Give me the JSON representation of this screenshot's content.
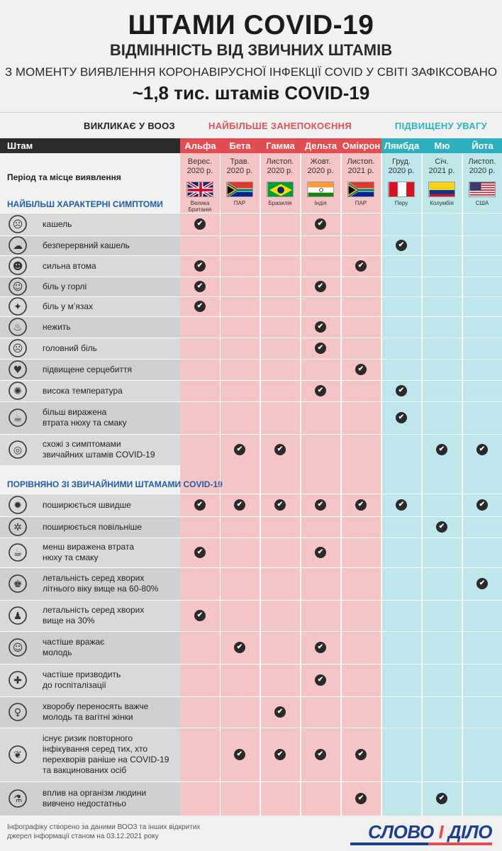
{
  "header": {
    "title": "ШТАМИ COVID-19",
    "subtitle": "ВІДМІННІСТЬ ВІД ЗВИЧНИХ ШТАМІВ",
    "line1": "З МОМЕНТУ ВИЯВЛЕННЯ КОРОНАВІРУСНОЇ ІНФЕКЦІЇ COVID У СВІТІ ЗАФІКСОВАНО",
    "line2": "~1,8 тис. штамів COVID-19"
  },
  "categories": {
    "who": "ВИКЛИКАЄ У ВООЗ",
    "concern": "НАЙБІЛЬШЕ ЗАНЕПОКОЄННЯ",
    "attention": "ПІДВИЩЕНУ УВАГУ"
  },
  "table": {
    "strain_label": "Штам",
    "period_label": "Період та місце виявлення",
    "variants": [
      {
        "name": "Альфа",
        "group": "concern",
        "date": [
          "Верес.",
          "2020 р."
        ],
        "country": [
          "Велика",
          "Британія"
        ],
        "flag": "uk-flag"
      },
      {
        "name": "Бета",
        "group": "concern",
        "date": [
          "Трав.",
          "2020 р."
        ],
        "country": [
          "ПАР"
        ],
        "flag": "south-africa-flag"
      },
      {
        "name": "Гамма",
        "group": "concern",
        "date": [
          "Листоп.",
          "2020 р."
        ],
        "country": [
          "Бразилія"
        ],
        "flag": "brazil-flag"
      },
      {
        "name": "Дельта",
        "group": "concern",
        "date": [
          "Жовт.",
          "2020 р."
        ],
        "country": [
          "Індія"
        ],
        "flag": "india-flag"
      },
      {
        "name": "Омікрон",
        "group": "concern",
        "date": [
          "Листоп.",
          "2021 р."
        ],
        "country": [
          "ПАР"
        ],
        "flag": "south-africa-flag"
      },
      {
        "name": "Лямбда",
        "group": "attention",
        "date": [
          "Груд.",
          "2020 р."
        ],
        "country": [
          "Перу"
        ],
        "flag": "peru-flag"
      },
      {
        "name": "Мю",
        "group": "attention",
        "date": [
          "Січ.",
          "2021 р."
        ],
        "country": [
          "Колумбія"
        ],
        "flag": "colombia-flag"
      },
      {
        "name": "Йота",
        "group": "attention",
        "date": [
          "Листоп.",
          "2020 р."
        ],
        "country": [
          "США"
        ],
        "flag": "usa-flag"
      }
    ]
  },
  "sections": [
    {
      "title": "НАЙБІЛЬШ ХАРАКТЕРНІ СИМПТОМИ",
      "rows": [
        {
          "label": [
            "кашель"
          ],
          "icon": "cough-icon",
          "checks": [
            0,
            3
          ]
        },
        {
          "label": [
            "безперервний кашель"
          ],
          "icon": "continuous-cough-icon",
          "checks": [
            5
          ]
        },
        {
          "label": [
            "сильна втома"
          ],
          "icon": "fatigue-icon",
          "checks": [
            0,
            4
          ]
        },
        {
          "label": [
            "біль у горлі"
          ],
          "icon": "sore-throat-icon",
          "checks": [
            0,
            3
          ]
        },
        {
          "label": [
            "біль у м’язах"
          ],
          "icon": "muscle-pain-icon",
          "checks": [
            0
          ]
        },
        {
          "label": [
            "нежить"
          ],
          "icon": "runny-nose-icon",
          "checks": [
            3
          ]
        },
        {
          "label": [
            "головний біль"
          ],
          "icon": "headache-icon",
          "checks": [
            3
          ]
        },
        {
          "label": [
            "підвищене серцебиття"
          ],
          "icon": "heartbeat-icon",
          "checks": [
            4
          ]
        },
        {
          "label": [
            "висока температура"
          ],
          "icon": "thermometer-icon",
          "checks": [
            3,
            5
          ]
        },
        {
          "label": [
            "більш виражена",
            "втрата нюху та смаку"
          ],
          "icon": "smell-taste-icon",
          "checks": [
            5
          ]
        },
        {
          "label": [
            "схожі з симптомами",
            "звичайних штамів COVID-19"
          ],
          "icon": "similar-symptoms-icon",
          "checks": [
            1,
            2,
            6,
            7
          ]
        }
      ]
    },
    {
      "title": "ПОРІВНЯНО ЗІ ЗВИЧАЙНИМИ ШТАМАМИ COVID-19",
      "rows": [
        {
          "label": [
            "поширюється швидше"
          ],
          "icon": "fast-spread-icon",
          "checks": [
            0,
            1,
            2,
            3,
            4,
            5,
            7
          ]
        },
        {
          "label": [
            "поширюється повільніше"
          ],
          "icon": "slow-spread-icon",
          "checks": [
            6
          ]
        },
        {
          "label": [
            "менш виражена втрата",
            "нюху та смаку"
          ],
          "icon": "smell-taste-icon",
          "checks": [
            0,
            3
          ]
        },
        {
          "label": [
            "летальність серед хворих",
            "літнього віку вище на 60-80%"
          ],
          "icon": "elderly-icon",
          "checks": [
            7
          ]
        },
        {
          "label": [
            "летальність серед хворих",
            "вище на 30%"
          ],
          "icon": "patient-icon",
          "checks": [
            0
          ]
        },
        {
          "label": [
            "частіше вражає",
            "молодь"
          ],
          "icon": "youth-icon",
          "checks": [
            1,
            3
          ]
        },
        {
          "label": [
            "частіше призводить",
            "до госпіталізації"
          ],
          "icon": "hospital-icon",
          "checks": [
            3
          ]
        },
        {
          "label": [
            "хворобу переносять важче",
            "молодь та вагітні жінки"
          ],
          "icon": "pregnant-icon",
          "checks": [
            2
          ]
        },
        {
          "label": [
            "існує ризик повторного",
            "інфікування серед тих, хто",
            "перехворів раніше на COVID-19",
            "та вакцинованих осіб"
          ],
          "icon": "lungs-icon",
          "checks": [
            1,
            2,
            3,
            4
          ]
        },
        {
          "label": [
            "вплив на організм людини",
            "вивчено недостатньо"
          ],
          "icon": "microscope-icon",
          "checks": [
            4,
            6
          ]
        }
      ]
    }
  ],
  "footer": {
    "line1": "Інфографіку створено за даними ВООЗ та інших відкритих",
    "line2": "джерел інформації станом на 03.12.2021 року",
    "logo_left": "СЛОВО",
    "logo_mid": "І",
    "logo_right": "ДІЛО"
  }
}
